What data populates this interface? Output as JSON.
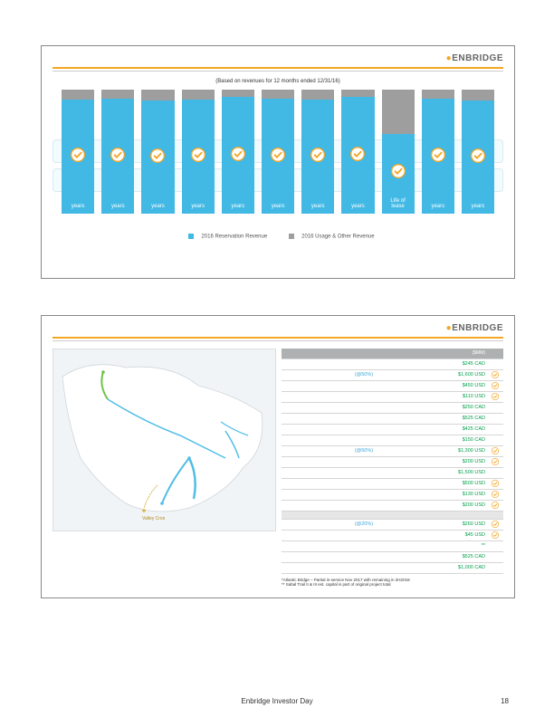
{
  "brand": "ENBRIDGE",
  "footer": {
    "title": "Enbridge Investor Day",
    "page": "18"
  },
  "slide1": {
    "subtitle": "(Based on revenues for 12 months ended 12/31/16)",
    "chart": {
      "bar_blue": "#42b9e5",
      "bar_gray": "#9e9e9e",
      "bars": [
        {
          "blue_h": 92,
          "gray_h": 8,
          "label": "years"
        },
        {
          "blue_h": 93,
          "gray_h": 7,
          "label": "years"
        },
        {
          "blue_h": 91,
          "gray_h": 9,
          "label": "years"
        },
        {
          "blue_h": 92,
          "gray_h": 8,
          "label": "years"
        },
        {
          "blue_h": 94,
          "gray_h": 6,
          "label": "years"
        },
        {
          "blue_h": 93,
          "gray_h": 7,
          "label": "years"
        },
        {
          "blue_h": 92,
          "gray_h": 8,
          "label": "years"
        },
        {
          "blue_h": 94,
          "gray_h": 6,
          "label": "years"
        },
        {
          "blue_h": 64,
          "gray_h": 36,
          "label": "Life of\nlease"
        },
        {
          "blue_h": 93,
          "gray_h": 7,
          "label": "years"
        },
        {
          "blue_h": 91,
          "gray_h": 9,
          "label": "years"
        }
      ],
      "legend": [
        {
          "color": "#42b9e5",
          "label": "2016 Reservation Revenue"
        },
        {
          "color": "#9e9e9e",
          "label": "2016 Usage & Other Revenue"
        }
      ]
    }
  },
  "slide2": {
    "header": "($MM)",
    "rows": [
      {
        "note": "",
        "val": "$245 CAD",
        "ck": false
      },
      {
        "note": "(@50%)",
        "val": "$1,600 USD",
        "ck": true
      },
      {
        "note": "",
        "val": "$450 USD",
        "ck": true
      },
      {
        "note": "",
        "val": "$110 USD",
        "ck": true
      },
      {
        "note": "",
        "val": "$250 CAD",
        "ck": false
      },
      {
        "note": "",
        "val": "$525 CAD",
        "ck": false
      },
      {
        "note": "",
        "val": "$425 CAD",
        "ck": false
      },
      {
        "note": "",
        "val": "$150 CAD",
        "ck": false
      },
      {
        "note": "(@50%)",
        "val": "$1,300 USD",
        "ck": true
      },
      {
        "note": "",
        "val": "$200 USD",
        "ck": true
      },
      {
        "note": "",
        "val": "$1,500 USD",
        "ck": false
      },
      {
        "note": "",
        "val": "$500 USD",
        "ck": true
      },
      {
        "note": "",
        "val": "$130 USD",
        "ck": true
      },
      {
        "note": "",
        "val": "$200 USD",
        "ck": true
      },
      {
        "sep": true
      },
      {
        "note": "(@20%)",
        "val": "$260 USD",
        "ck": true
      },
      {
        "note": "",
        "val": "$45 USD",
        "ck": true
      },
      {
        "note": "",
        "val": "**",
        "ck": false
      },
      {
        "note": "",
        "val": "$525 CAD",
        "ck": false
      },
      {
        "note": "",
        "val": "$1,000 CAD",
        "ck": false
      }
    ],
    "footnotes": [
      "*Atlantic Bridge – Partial in-service Nov 2017 with remaining in 2H2018",
      "** Sabal Trail II & III est. capital is part of original project total"
    ],
    "map_label": "Valley Cros"
  }
}
